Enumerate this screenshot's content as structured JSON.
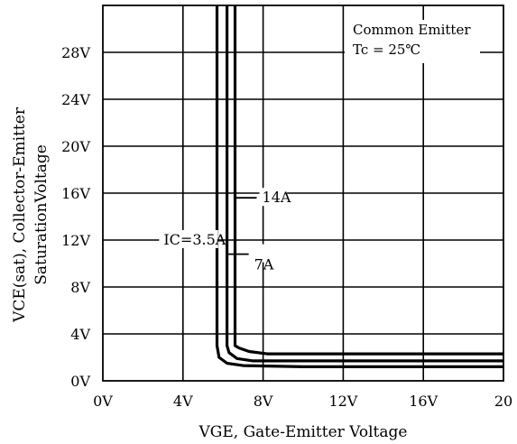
{
  "chart_data": {
    "type": "line",
    "xlabel": "VGE, Gate-Emitter Voltage",
    "ylabel_line1": "VCE(sat), Collector-Emitter",
    "ylabel_line2": "SaturationVoltage",
    "xlim": [
      0,
      20
    ],
    "ylim": [
      0,
      32
    ],
    "grid": true,
    "x_ticks": [
      {
        "value": 0,
        "label": "0V"
      },
      {
        "value": 4,
        "label": "4V"
      },
      {
        "value": 8,
        "label": "8V"
      },
      {
        "value": 12,
        "label": "12V"
      },
      {
        "value": 16,
        "label": "16V"
      },
      {
        "value": 20,
        "label": "20"
      }
    ],
    "y_ticks": [
      {
        "value": 0,
        "label": "0V"
      },
      {
        "value": 4,
        "label": "4V"
      },
      {
        "value": 8,
        "label": "8V"
      },
      {
        "value": 12,
        "label": "12V"
      },
      {
        "value": 16,
        "label": "16V"
      },
      {
        "value": 20,
        "label": "20V"
      },
      {
        "value": 24,
        "label": "24V"
      },
      {
        "value": 28,
        "label": "28V"
      }
    ],
    "annotation": {
      "line1": "Common Emitter",
      "line2": "Tc = 25℃"
    },
    "series": [
      {
        "name": "IC=3.5A",
        "x": [
          5.7,
          5.7,
          5.8,
          6.2,
          7.0,
          10,
          15,
          20
        ],
        "y": [
          32,
          3.0,
          2.0,
          1.5,
          1.3,
          1.2,
          1.2,
          1.2
        ]
      },
      {
        "name": "7A",
        "x": [
          6.2,
          6.2,
          6.3,
          6.7,
          7.5,
          10,
          15,
          20
        ],
        "y": [
          32,
          3.0,
          2.4,
          1.9,
          1.7,
          1.7,
          1.7,
          1.7
        ]
      },
      {
        "name": "14A",
        "x": [
          6.6,
          6.6,
          6.8,
          7.3,
          8.2,
          10,
          15,
          20
        ],
        "y": [
          32,
          3.0,
          2.8,
          2.5,
          2.3,
          2.3,
          2.3,
          2.3
        ]
      }
    ],
    "series_labels": [
      {
        "text": "IC=3.5A",
        "at_x": 5.8,
        "at_y": 12
      },
      {
        "text": "7A",
        "at_x": 6.2,
        "at_y": 10.8
      },
      {
        "text": "14A",
        "at_x": 6.6,
        "at_y": 15.6
      }
    ]
  }
}
